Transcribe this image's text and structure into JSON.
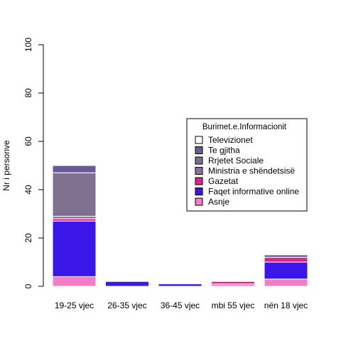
{
  "chart_data": {
    "type": "bar",
    "stacked": true,
    "title": "",
    "xlabel": "",
    "ylabel": "Nr i personve",
    "ylim": [
      0,
      100
    ],
    "yticks": [
      0,
      20,
      40,
      60,
      80,
      100
    ],
    "grid": false,
    "categories": [
      "19-25 vjec",
      "26-35 vjec",
      "36-45 vjec",
      "mbi 55 vjec",
      "nën 18 vjec"
    ],
    "legend": {
      "title": "Burimet.e.Informacionit",
      "placement": "center-right"
    },
    "series": [
      {
        "name": "Asnje",
        "color": "#f07fc8",
        "values": [
          4,
          0,
          0,
          1,
          3
        ]
      },
      {
        "name": "Faqet informative online",
        "color": "#3a17e8",
        "values": [
          23,
          2,
          1,
          0,
          7
        ]
      },
      {
        "name": "Gazetat",
        "color": "#d8288c",
        "values": [
          1,
          0,
          0,
          1,
          2
        ]
      },
      {
        "name": "Ministria e shëndetsisë",
        "color": "#8a6f9e",
        "values": [
          1,
          0,
          0,
          0,
          0
        ]
      },
      {
        "name": "Rrjetet Sociale",
        "color": "#80708f",
        "values": [
          18,
          0,
          0,
          0,
          0
        ]
      },
      {
        "name": "Te gjitha",
        "color": "#6a5a94",
        "values": [
          3,
          0,
          0,
          0,
          1
        ]
      },
      {
        "name": "Televizionet",
        "color": "#ffffff",
        "values": [
          0,
          0,
          0,
          0,
          0
        ]
      }
    ],
    "legend_order": [
      "Televizionet",
      "Te gjitha",
      "Rrjetet Sociale",
      "Ministria e shëndetsisë",
      "Gazetat",
      "Faqet informative online",
      "Asnje"
    ]
  }
}
